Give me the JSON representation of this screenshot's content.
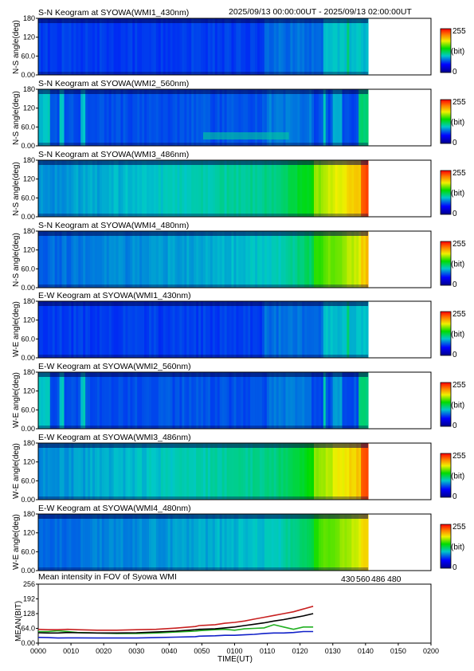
{
  "header": {
    "time_range": "2025/09/13 00:00:00UT - 2025/09/13 02:00:00UT"
  },
  "colorbar": {
    "max_label": "255",
    "unit_label": "(bit)",
    "min_label": "0"
  },
  "colors": {
    "series_430": "#1020c8",
    "series_560": "#20b020",
    "series_486": "#c82020",
    "series_480": "#000000"
  },
  "chart_data": [
    {
      "type": "heatmap",
      "title": "S-N Keogram at SYOWA(WMI1_430nm)",
      "ylabel": "N-S angle(deg)",
      "yticks": [
        "0.00",
        "60.0",
        "120",
        "180"
      ],
      "ylim": [
        0,
        180
      ],
      "xlim_min": [
        0,
        140
      ],
      "zlim": [
        0,
        255
      ],
      "profile": "blue430",
      "bright_band": ""
    },
    {
      "type": "heatmap",
      "title": "S-N Keogram at SYOWA(WMI2_560nm)",
      "ylabel": "N-S angle(deg)",
      "yticks": [
        "0.00",
        "60.0",
        "120",
        "180"
      ],
      "ylim": [
        0,
        180
      ],
      "xlim_min": [
        0,
        140
      ],
      "zlim": [
        0,
        255
      ],
      "profile": "green560",
      "bright_band": "low"
    },
    {
      "type": "heatmap",
      "title": "S-N Keogram at SYOWA(WMI3_486nm)",
      "ylabel": "N-S angle(deg)",
      "yticks": [
        "0.00",
        "60.0",
        "120",
        "180"
      ],
      "ylim": [
        0,
        180
      ],
      "xlim_min": [
        0,
        140
      ],
      "zlim": [
        0,
        255
      ],
      "profile": "dawn486",
      "bright_band": ""
    },
    {
      "type": "heatmap",
      "title": "S-N Keogram at SYOWA(WMI4_480nm)",
      "ylabel": "N-S angle(deg)",
      "yticks": [
        "0.00",
        "60.0",
        "120",
        "180"
      ],
      "ylim": [
        0,
        180
      ],
      "xlim_min": [
        0,
        140
      ],
      "zlim": [
        0,
        255
      ],
      "profile": "dawn480",
      "bright_band": ""
    },
    {
      "type": "heatmap",
      "title": "E-W Keogram at SYOWA(WMI1_430nm)",
      "ylabel": "W-E angle(deg)",
      "yticks": [
        "0.00",
        "60.0",
        "120",
        "180"
      ],
      "ylim": [
        0,
        180
      ],
      "xlim_min": [
        0,
        140
      ],
      "zlim": [
        0,
        255
      ],
      "profile": "blue430",
      "bright_band": ""
    },
    {
      "type": "heatmap",
      "title": "E-W Keogram at SYOWA(WMI2_560nm)",
      "ylabel": "W-E angle(deg)",
      "yticks": [
        "0.00",
        "60.0",
        "120",
        "180"
      ],
      "ylim": [
        0,
        180
      ],
      "xlim_min": [
        0,
        140
      ],
      "zlim": [
        0,
        255
      ],
      "profile": "green560",
      "bright_band": ""
    },
    {
      "type": "heatmap",
      "title": "E-W Keogram at SYOWA(WMI3_486nm)",
      "ylabel": "W-E angle(deg)",
      "yticks": [
        "0.00",
        "60.0",
        "120",
        "180"
      ],
      "ylim": [
        0,
        180
      ],
      "xlim_min": [
        0,
        140
      ],
      "zlim": [
        0,
        255
      ],
      "profile": "dawn486",
      "bright_band": ""
    },
    {
      "type": "heatmap",
      "title": "E-W Keogram at SYOWA(WMI4_480nm)",
      "ylabel": "W-E angle(deg)",
      "yticks": [
        "0.00",
        "60.0",
        "120",
        "180"
      ],
      "ylim": [
        0,
        180
      ],
      "xlim_min": [
        0,
        140
      ],
      "zlim": [
        0,
        255
      ],
      "profile": "dawn480",
      "bright_band": ""
    },
    {
      "type": "line",
      "title": "Mean intensity in FOV of Syowa WMI",
      "xlabel": "TIME(UT)",
      "ylabel": "MEAN(BIT)",
      "ylim": [
        0,
        256
      ],
      "yticks": [
        "0.00",
        "64.0",
        "128",
        "192",
        "256"
      ],
      "xticks": [
        "0000",
        "0010",
        "0020",
        "0030",
        "0040",
        "0050",
        "0100",
        "0110",
        "0120",
        "0130",
        "0140",
        "0150",
        "0200"
      ],
      "x": [
        0,
        5,
        10,
        15,
        20,
        30,
        40,
        50,
        60,
        70,
        80,
        82,
        90,
        95,
        100,
        105,
        110,
        115,
        120,
        125,
        130,
        135,
        140
      ],
      "series": [
        {
          "name": "430",
          "values": [
            25,
            24,
            22,
            23,
            23,
            22,
            22,
            22,
            24,
            26,
            28,
            30,
            32,
            34,
            34,
            36,
            38,
            42,
            44,
            44,
            46,
            50,
            50
          ]
        },
        {
          "name": "560",
          "values": [
            50,
            50,
            54,
            50,
            46,
            44,
            42,
            42,
            44,
            48,
            52,
            54,
            58,
            60,
            56,
            62,
            64,
            66,
            80,
            70,
            60,
            70,
            70
          ]
        },
        {
          "name": "486",
          "values": [
            60,
            58,
            58,
            60,
            58,
            56,
            56,
            58,
            60,
            65,
            72,
            76,
            80,
            86,
            90,
            96,
            104,
            112,
            120,
            128,
            136,
            148,
            160
          ]
        },
        {
          "name": "480",
          "values": [
            45,
            44,
            44,
            46,
            45,
            44,
            44,
            45,
            48,
            52,
            58,
            60,
            62,
            66,
            70,
            76,
            82,
            88,
            96,
            102,
            110,
            118,
            128
          ]
        }
      ]
    }
  ]
}
